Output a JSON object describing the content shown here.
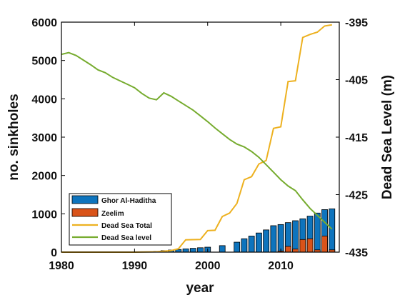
{
  "chart_data": {
    "type": "bar+line",
    "xlabel": "year",
    "ylabel_left": "no. sinkholes",
    "ylabel_right": "Dead Sea Level (m)",
    "x_ticks": [
      "1980",
      "1990",
      "2000",
      "2010"
    ],
    "y_left_ticks": [
      "0",
      "1000",
      "2000",
      "3000",
      "4000",
      "5000",
      "6000"
    ],
    "y_right_ticks": [
      "-395",
      "-405",
      "-415",
      "-425",
      "-435"
    ],
    "xlim": [
      1980,
      2018
    ],
    "ylim_left": [
      0,
      6000
    ],
    "ylim_right": [
      -435,
      -395
    ],
    "grid": false,
    "legend_position": "bottom-left",
    "colors": {
      "ghor": "#0e74bd",
      "zeelim": "#d95319",
      "total": "#edb120",
      "level": "#77ac30"
    },
    "series": [
      {
        "name": "Ghor Al-Haditha",
        "type": "bar",
        "x": [
          1993,
          1994,
          1995,
          1996,
          1997,
          1998,
          1999,
          2000,
          2002,
          2004,
          2005,
          2006,
          2007,
          2008,
          2009,
          2010,
          2011,
          2012,
          2013,
          2014,
          2015,
          2016,
          2017
        ],
        "values": [
          20,
          40,
          55,
          70,
          85,
          100,
          115,
          130,
          170,
          260,
          350,
          420,
          500,
          580,
          690,
          720,
          770,
          820,
          870,
          940,
          1020,
          1110,
          1130
        ]
      },
      {
        "name": "Zeelim",
        "type": "bar",
        "x": [
          2010,
          2011,
          2012,
          2013,
          2014,
          2015,
          2016,
          2017
        ],
        "values": [
          30,
          150,
          80,
          330,
          350,
          60,
          420,
          60
        ]
      },
      {
        "name": "Dead Sea Total",
        "type": "line",
        "axis": "left",
        "x": [
          1980,
          1985,
          1990,
          1993,
          1995,
          1996,
          1997,
          1999,
          2000,
          2001,
          2002,
          2003,
          2004,
          2005,
          2006,
          2007,
          2008,
          2009,
          2010,
          2011,
          2012,
          2013,
          2014,
          2015,
          2016,
          2017
        ],
        "values": [
          0,
          0,
          0,
          10,
          40,
          90,
          320,
          330,
          560,
          570,
          930,
          1020,
          1270,
          1890,
          1970,
          2300,
          2390,
          3230,
          3270,
          4450,
          4470,
          5600,
          5680,
          5740,
          5900,
          5930
        ]
      },
      {
        "name": "Dead Sea level",
        "type": "line",
        "axis": "right",
        "x": [
          1980,
          1981,
          1982,
          1983,
          1984,
          1985,
          1986,
          1987,
          1988,
          1989,
          1990,
          1991,
          1992,
          1993,
          1994,
          1995,
          1996,
          1997,
          1998,
          1999,
          2000,
          2001,
          2002,
          2003,
          2004,
          2005,
          2006,
          2007,
          2008,
          2009,
          2010,
          2011,
          2012,
          2013,
          2014,
          2015,
          2016,
          2017
        ],
        "values": [
          -400.6,
          -400.3,
          -400.8,
          -401.6,
          -402.4,
          -403.3,
          -403.8,
          -404.6,
          -405.2,
          -405.8,
          -406.4,
          -407.4,
          -408.2,
          -408.5,
          -407.3,
          -407.9,
          -408.7,
          -409.5,
          -410.3,
          -411.3,
          -412.3,
          -413.4,
          -414.4,
          -415.4,
          -416.2,
          -416.7,
          -417.5,
          -418.5,
          -419.8,
          -421.1,
          -422.4,
          -423.5,
          -424.3,
          -425.9,
          -427.4,
          -428.6,
          -429.8,
          -431.0
        ]
      }
    ]
  }
}
